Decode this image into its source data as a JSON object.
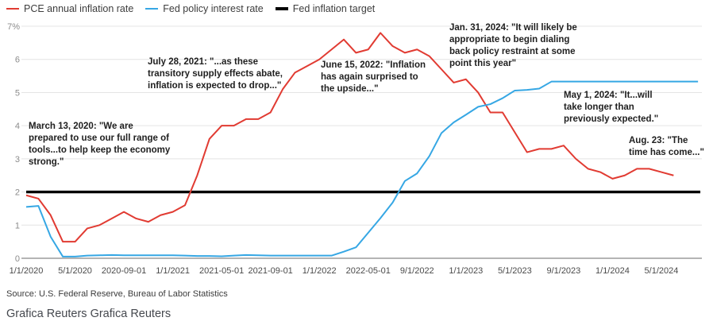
{
  "legend": {
    "items": [
      {
        "label": "PCE annual inflation rate",
        "color": "#e13b32",
        "style": "thin"
      },
      {
        "label": "Fed policy interest rate",
        "color": "#36a7e4",
        "style": "thin"
      },
      {
        "label": "Fed inflation target",
        "color": "#000000",
        "style": "thick"
      }
    ]
  },
  "chart_data": {
    "type": "line",
    "x_start": "2020-01",
    "x_frequency": "monthly",
    "ylim": [
      0,
      7
    ],
    "grid": "horizontal",
    "legend_position": "top-left",
    "y_ticks": [
      {
        "label": "7%",
        "value": 7
      },
      {
        "label": "6",
        "value": 6
      },
      {
        "label": "5",
        "value": 5
      },
      {
        "label": "4",
        "value": 4
      },
      {
        "label": "3",
        "value": 3
      },
      {
        "label": "2",
        "value": 2
      },
      {
        "label": "1",
        "value": 1
      },
      {
        "label": "0",
        "value": 0
      }
    ],
    "x_ticks": [
      {
        "label": "1/1/2020",
        "month": 0
      },
      {
        "label": "5/1/2020",
        "month": 4
      },
      {
        "label": "2020-09-01",
        "month": 8
      },
      {
        "label": "1/1/2021",
        "month": 12
      },
      {
        "label": "2021-05-01",
        "month": 16
      },
      {
        "label": "2021-09-01",
        "month": 20
      },
      {
        "label": "1/1/2022",
        "month": 24
      },
      {
        "label": "2022-05-01",
        "month": 28
      },
      {
        "label": "9/1/2022",
        "month": 32
      },
      {
        "label": "1/1/2023",
        "month": 36
      },
      {
        "label": "5/1/2023",
        "month": 40
      },
      {
        "label": "9/1/2023",
        "month": 44
      },
      {
        "label": "1/1/2024",
        "month": 48
      },
      {
        "label": "5/1/2024",
        "month": 52
      }
    ],
    "series": [
      {
        "name": "PCE annual inflation rate",
        "color": "#e13b32",
        "stroke_width": 2,
        "start_month": 0,
        "values": [
          1.9,
          1.8,
          1.3,
          0.5,
          0.5,
          0.9,
          1.0,
          1.2,
          1.4,
          1.2,
          1.1,
          1.3,
          1.4,
          1.6,
          2.5,
          3.6,
          4.0,
          4.0,
          4.2,
          4.2,
          4.4,
          5.1,
          5.6,
          5.8,
          6.0,
          6.3,
          6.6,
          6.2,
          6.3,
          6.8,
          6.4,
          6.2,
          6.3,
          6.1,
          5.7,
          5.3,
          5.4,
          5.0,
          4.4,
          4.4,
          3.8,
          3.2,
          3.3,
          3.3,
          3.4,
          3.0,
          2.7,
          2.6,
          2.4,
          2.5,
          2.7,
          2.7,
          2.6,
          2.5
        ]
      },
      {
        "name": "Fed policy interest rate",
        "color": "#36a7e4",
        "stroke_width": 2,
        "start_month": 0,
        "values": [
          1.55,
          1.58,
          0.65,
          0.05,
          0.05,
          0.08,
          0.09,
          0.1,
          0.09,
          0.09,
          0.09,
          0.09,
          0.09,
          0.08,
          0.07,
          0.07,
          0.06,
          0.08,
          0.1,
          0.09,
          0.08,
          0.08,
          0.08,
          0.08,
          0.08,
          0.08,
          0.2,
          0.33,
          0.77,
          1.21,
          1.68,
          2.33,
          2.56,
          3.08,
          3.78,
          4.1,
          4.33,
          4.57,
          4.65,
          4.83,
          5.06,
          5.08,
          5.12,
          5.33,
          5.33,
          5.33,
          5.33,
          5.33,
          5.33,
          5.33,
          5.33,
          5.33,
          5.33,
          5.33,
          5.33,
          5.33
        ]
      },
      {
        "name": "Fed inflation target",
        "color": "#000000",
        "stroke_width": 3.4,
        "constant": 2.0
      }
    ],
    "annotations": [
      {
        "text": "March 13, 2020: \"We are\nprepared to use our full range of\ntools...to help keep the economy\nstrong.\""
      },
      {
        "text": "July 28, 2021: \"...as these\ntransitory supply effects abate,\ninflation is expected to drop...\""
      },
      {
        "text": "June 15, 2022: \"Inflation\nhas again surprised to\nthe upside...\""
      },
      {
        "text": "Jan. 31, 2024: \"It will likely be\nappropriate to begin dialing\nback policy restraint at some\npoint this year\""
      },
      {
        "text": "May 1, 2024: \"It...will\ntake longer than\npreviously expected.\""
      },
      {
        "text": "Aug. 23: \"The\ntime has come...\""
      }
    ]
  },
  "source": "Source: U.S. Federal Reserve, Bureau of Labor Statistics",
  "footer": "Grafica Reuters Grafica Reuters"
}
